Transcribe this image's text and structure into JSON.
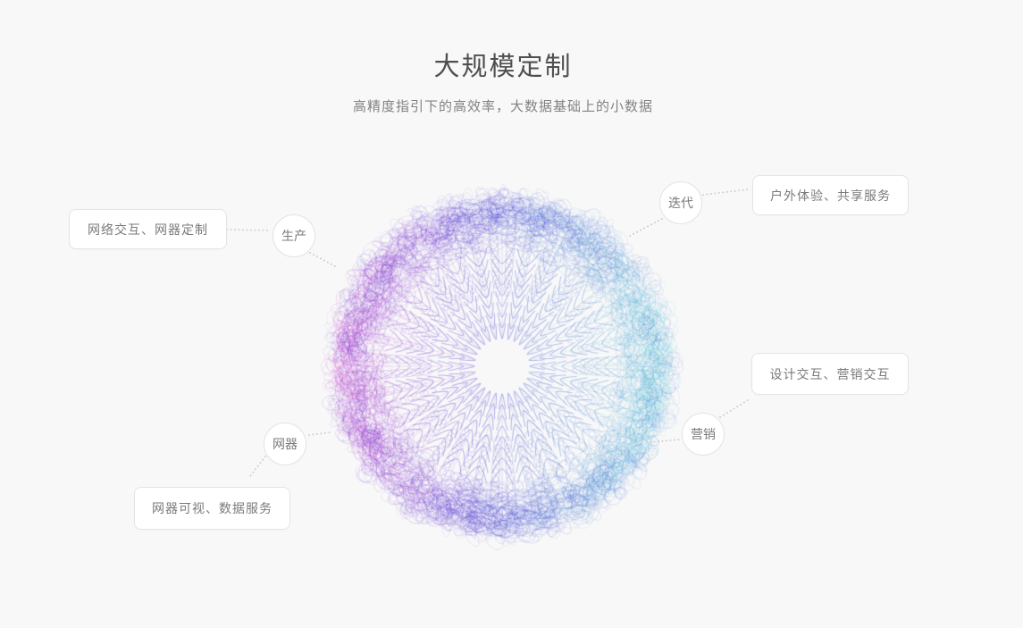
{
  "background_color": "#f8f8f8",
  "header": {
    "title": "大规模定制",
    "subtitle": "高精度指引下的高效率，大数据基础上的小数据"
  },
  "diagram": {
    "circles": [
      {
        "label": "生产"
      },
      {
        "label": "迭代"
      },
      {
        "label": "网器"
      },
      {
        "label": "营销"
      }
    ],
    "boxes": [
      {
        "label": "网络交互、网器定制"
      },
      {
        "label": "户外体验、共享服务"
      },
      {
        "label": "设计交互、营销交互"
      },
      {
        "label": "网器可视、数据服务"
      }
    ],
    "connector_color": "#c9c9c9",
    "sphere": {
      "palette": {
        "left": "#bb5fc9",
        "center": "#6a6fc4",
        "right": "#4ecbdd",
        "rim": "#5a55c0"
      }
    }
  }
}
